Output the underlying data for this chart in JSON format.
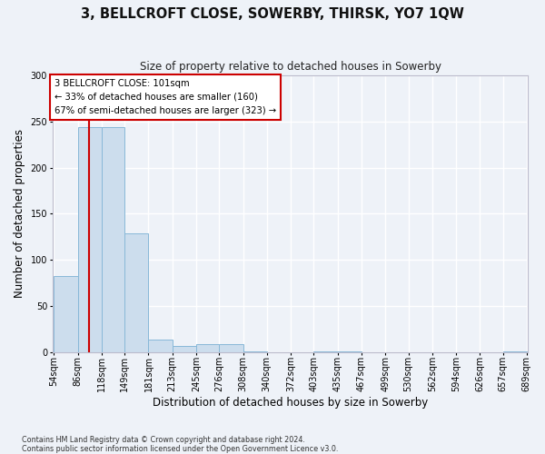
{
  "title": "3, BELLCROFT CLOSE, SOWERBY, THIRSK, YO7 1QW",
  "subtitle": "Size of property relative to detached houses in Sowerby",
  "xlabel": "Distribution of detached houses by size in Sowerby",
  "ylabel": "Number of detached properties",
  "bin_edges": [
    54,
    86,
    118,
    149,
    181,
    213,
    245,
    276,
    308,
    340,
    372,
    403,
    435,
    467,
    499,
    530,
    562,
    594,
    626,
    657,
    689
  ],
  "bin_labels": [
    "54sqm",
    "86sqm",
    "118sqm",
    "149sqm",
    "181sqm",
    "213sqm",
    "245sqm",
    "276sqm",
    "308sqm",
    "340sqm",
    "372sqm",
    "403sqm",
    "435sqm",
    "467sqm",
    "499sqm",
    "530sqm",
    "562sqm",
    "594sqm",
    "626sqm",
    "657sqm",
    "689sqm"
  ],
  "bar_heights": [
    83,
    244,
    244,
    129,
    14,
    7,
    9,
    9,
    1,
    0,
    0,
    1,
    1,
    0,
    0,
    0,
    0,
    0,
    0,
    1
  ],
  "bar_color": "#ccdded",
  "bar_edge_color": "#88b8d8",
  "property_line_x": 101,
  "property_line_color": "#cc0000",
  "annotation_text_line1": "3 BELLCROFT CLOSE: 101sqm",
  "annotation_text_line2": "← 33% of detached houses are smaller (160)",
  "annotation_text_line3": "67% of semi-detached houses are larger (323) →",
  "annotation_box_color": "#cc0000",
  "ylim": [
    0,
    300
  ],
  "yticks": [
    0,
    50,
    100,
    150,
    200,
    250,
    300
  ],
  "footer_line1": "Contains HM Land Registry data © Crown copyright and database right 2024.",
  "footer_line2": "Contains public sector information licensed under the Open Government Licence v3.0.",
  "bg_color": "#eef2f8",
  "grid_color": "#ffffff"
}
